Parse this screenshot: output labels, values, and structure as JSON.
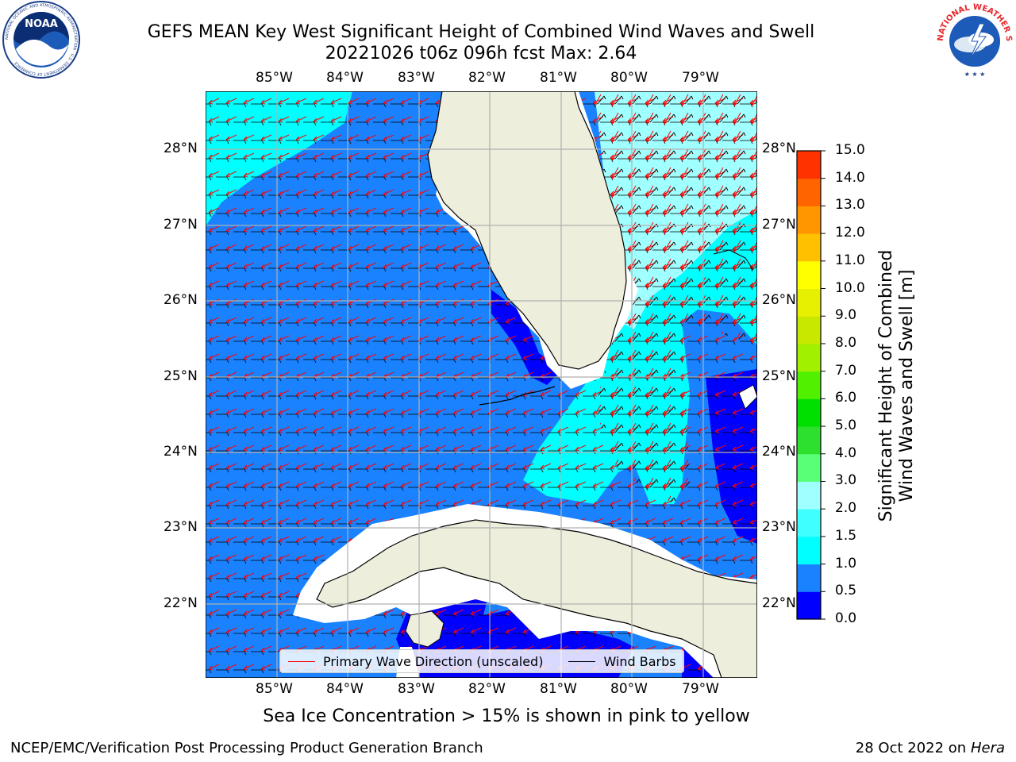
{
  "title_line1": "GEFS MEAN Key West Significant Height of Combined Wind Waves and Swell",
  "title_line2": "20221026 t06z 096h fcst   Max: 2.64",
  "lon_labels": [
    "85°W",
    "84°W",
    "83°W",
    "82°W",
    "81°W",
    "80°W",
    "79°W"
  ],
  "lat_labels": [
    "28°N",
    "27°N",
    "26°N",
    "25°N",
    "24°N",
    "23°N",
    "22°N"
  ],
  "colorbar": {
    "title_line1": "Significant Height of Combined",
    "title_line2": "Wind Waves and Swell [m]",
    "levels": [
      "0.0",
      "0.5",
      "1.0",
      "1.5",
      "2.0",
      "3.0",
      "4.0",
      "5.0",
      "6.0",
      "7.0",
      "8.0",
      "9.0",
      "10.0",
      "11.0",
      "12.0",
      "13.0",
      "14.0",
      "15.0"
    ],
    "colors": [
      "#0000ff",
      "#1a82ff",
      "#00ffff",
      "#40ffff",
      "#a0ffff",
      "#5aff78",
      "#2de02d",
      "#00e000",
      "#50f000",
      "#a0f000",
      "#c8e800",
      "#e6f000",
      "#ffff00",
      "#ffc000",
      "#ff9600",
      "#ff6400",
      "#ff3200",
      "#ff0000"
    ]
  },
  "legend": {
    "wave_label": "Primary Wave Direction (unscaled)",
    "wave_color": "#ff0000",
    "barb_label": "Wind Barbs",
    "barb_color": "#000000"
  },
  "subcaption": "Sea Ice Concentration > 15% is shown in pink to yellow",
  "credit": "NCEP/EMC/Verification Post Processing Product Generation Branch",
  "date_prefix": "28 Oct 2022 on ",
  "date_machine": "Hera",
  "noaa_logo_text": "NOAA",
  "noaa_ring_text": "NATIONAL OCEANIC AND ATMOSPHERIC ADMINISTRATION · U.S. DEPARTMENT OF COMMERCE",
  "nws_ring_text": "NATIONAL WEATHER SERVICE",
  "map_colors": {
    "land": "#eeeedd",
    "coast": "#000000",
    "grid": "#b0b0b0"
  }
}
